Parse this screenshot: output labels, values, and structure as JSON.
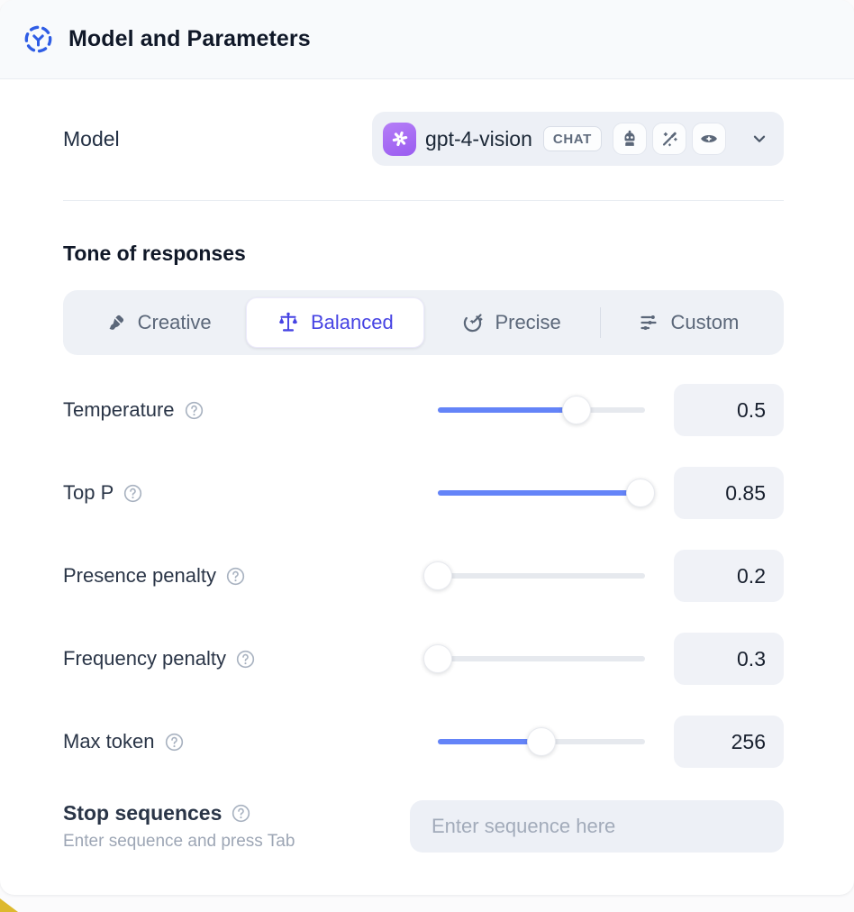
{
  "header": {
    "title": "Model and Parameters"
  },
  "model": {
    "label": "Model",
    "selected_name": "gpt-4-vision",
    "type_badge": "CHAT",
    "capability_icons": [
      "robot-icon",
      "magic-wand-icon",
      "vision-eye-icon"
    ],
    "provider_icon": "openai-logo"
  },
  "tone": {
    "heading": "Tone of responses",
    "options": [
      {
        "label": "Creative",
        "icon": "paintbrush-icon",
        "selected": false
      },
      {
        "label": "Balanced",
        "icon": "balance-scale-icon",
        "selected": true
      },
      {
        "label": "Precise",
        "icon": "target-arrow-icon",
        "selected": false
      },
      {
        "label": "Custom",
        "icon": "sliders-icon",
        "selected": false
      }
    ]
  },
  "parameters": [
    {
      "label": "Temperature",
      "value": "0.5",
      "fill_pct": 67
    },
    {
      "label": "Top P",
      "value": "0.85",
      "fill_pct": 98
    },
    {
      "label": "Presence penalty",
      "value": "0.2",
      "fill_pct": 0
    },
    {
      "label": "Frequency penalty",
      "value": "0.3",
      "fill_pct": 0
    },
    {
      "label": "Max token",
      "value": "256",
      "fill_pct": 50
    }
  ],
  "stop_sequences": {
    "label": "Stop sequences",
    "hint": "Enter sequence and press Tab",
    "placeholder": "Enter sequence here"
  },
  "colors": {
    "accent_blue": "#6484f8",
    "selected_indigo": "#4643e3",
    "header_icon_blue": "#2f5de5",
    "provider_purple": "#9a5cf0",
    "corner_yellow": "#ddb92d",
    "control_bg": "#edf0f6"
  }
}
